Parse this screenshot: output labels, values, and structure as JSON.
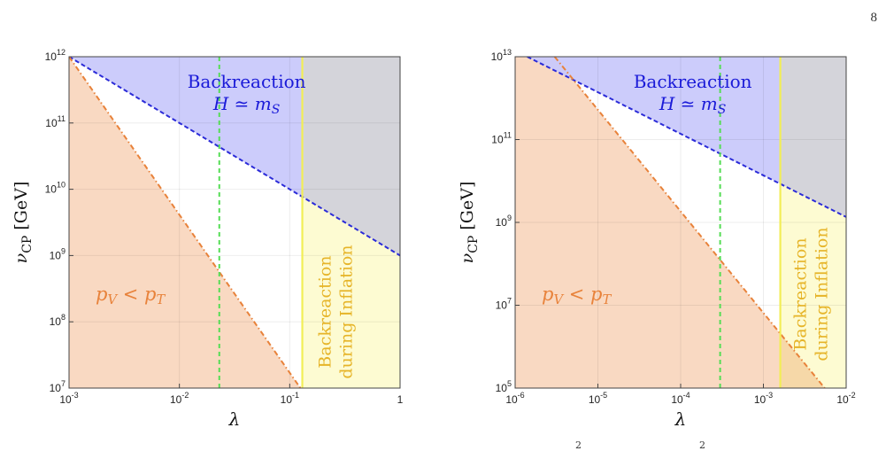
{
  "page_number": "8",
  "colors": {
    "tensor_region": "#f9d9c2",
    "backreaction_region": "#c9c9fb",
    "inflation_region": "#fdfbd2",
    "overlap_region": "#d4d4da",
    "blue_line": "#2b2bd8",
    "orange_line": "#e8823a",
    "green_line": "#55dd55",
    "yellow_line": "#f2ee55",
    "blue_text": "#1a1ad8",
    "orange_text": "#e8823a",
    "yellow_text": "#e6b428"
  },
  "chart_data": [
    {
      "type": "area",
      "xscale": "log",
      "yscale": "log",
      "xlim": [
        0.001,
        1
      ],
      "ylim": [
        10000000.0,
        1000000000000.0
      ],
      "xlabel": "λ",
      "ylabel": "ν_CP [GeV]",
      "x_ticks": [
        {
          "v": 0.001,
          "m": "10",
          "e": "-3"
        },
        {
          "v": 0.01,
          "m": "10",
          "e": "-2"
        },
        {
          "v": 0.1,
          "m": "10",
          "e": "-1"
        },
        {
          "v": 1,
          "m": "1",
          "e": ""
        }
      ],
      "y_ticks": [
        {
          "v": 10000000.0,
          "m": "10",
          "e": "7"
        },
        {
          "v": 100000000.0,
          "m": "10",
          "e": "8"
        },
        {
          "v": 1000000000.0,
          "m": "10",
          "e": "9"
        },
        {
          "v": 10000000000.0,
          "m": "10",
          "e": "10"
        },
        {
          "v": 100000000000.0,
          "m": "10",
          "e": "11"
        },
        {
          "v": 1000000000000.0,
          "m": "10",
          "e": "12"
        }
      ],
      "series": [
        {
          "style": "blue-dashed",
          "x": [
            0.001,
            1
          ],
          "y": [
            1000000000000.0,
            1000000000.0
          ]
        },
        {
          "style": "orange-dashdot",
          "x": [
            0.001,
            0.125
          ],
          "y": [
            1000000000000.0,
            10000000.0
          ]
        },
        {
          "style": "green-dashed-vertical",
          "x": [
            0.023,
            0.023
          ],
          "y": [
            10000000.0,
            1000000000000.0
          ]
        },
        {
          "style": "yellow-vertical",
          "x": [
            0.13,
            0.13
          ],
          "y": [
            10000000.0,
            1000000000000.0
          ]
        }
      ],
      "annotations": {
        "backreaction": "Backreaction",
        "hubble_cond": "H ≃ m_S",
        "tensor_cond": "p_V < p_T",
        "inflation_1": "Backreaction",
        "inflation_2": "during Inflation"
      }
    },
    {
      "type": "area",
      "xscale": "log",
      "yscale": "log",
      "xlim": [
        1e-06,
        0.01
      ],
      "ylim": [
        100000.0,
        10000000000000.0
      ],
      "xlabel": "λ",
      "ylabel": "ν_CP [GeV]",
      "x_ticks": [
        {
          "v": 1e-06,
          "m": "10",
          "e": "-6"
        },
        {
          "v": 1e-05,
          "m": "10",
          "e": "-5"
        },
        {
          "v": 0.0001,
          "m": "10",
          "e": "-4"
        },
        {
          "v": 0.001,
          "m": "10",
          "e": "-3"
        },
        {
          "v": 0.01,
          "m": "10",
          "e": "-2"
        }
      ],
      "y_ticks": [
        {
          "v": 100000.0,
          "m": "10",
          "e": "5"
        },
        {
          "v": 10000000.0,
          "m": "10",
          "e": "7"
        },
        {
          "v": 1000000000.0,
          "m": "10",
          "e": "9"
        },
        {
          "v": 100000000000.0,
          "m": "10",
          "e": "11"
        },
        {
          "v": 10000000000000.0,
          "m": "10",
          "e": "13"
        }
      ],
      "series": [
        {
          "style": "blue-dashed",
          "x": [
            1.4e-06,
            0.01
          ],
          "y": [
            10000000000000.0,
            1350000000.0
          ]
        },
        {
          "style": "orange-dashdot",
          "x": [
            3e-06,
            0.0055
          ],
          "y": [
            10000000000000.0,
            100000.0
          ]
        },
        {
          "style": "green-dashed-vertical",
          "x": [
            0.0003,
            0.0003
          ],
          "y": [
            100000.0,
            10000000000000.0
          ]
        },
        {
          "style": "yellow-vertical",
          "x": [
            0.0016,
            0.0016
          ],
          "y": [
            100000.0,
            10000000000000.0
          ]
        }
      ],
      "annotations": {
        "backreaction": "Backreaction",
        "hubble_cond": "H ≃ m_S",
        "tensor_cond": "p_V < p_T",
        "inflation_1": "Backreaction",
        "inflation_2": "during Inflation"
      }
    }
  ],
  "caption_fragment": "2 2"
}
